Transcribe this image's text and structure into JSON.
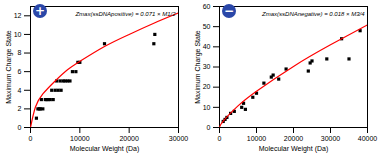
{
  "chart_data": [
    {
      "type": "scatter",
      "badge": "+",
      "annotation": "Zmax(ssDNApositive) = 0.071 × M1/2",
      "x_label": "Molecular Weight (Da)",
      "y_label": "Maximum Charge State",
      "xlim": [
        0,
        30000
      ],
      "xticks": [
        0,
        10000,
        20000,
        30000
      ],
      "ylim": [
        0,
        13
      ],
      "yticks": [
        0,
        2,
        4,
        6,
        8,
        10,
        12
      ],
      "series": [
        {
          "type": "scatter",
          "color": "#000000",
          "marker": "square",
          "x": [
            1200,
            1500,
            1800,
            2000,
            2200,
            2500,
            3000,
            3300,
            3600,
            4000,
            4300,
            4600,
            5000,
            5300,
            5600,
            6000,
            6200,
            6600,
            7000,
            7500,
            8000,
            8500,
            9200,
            9600,
            10000,
            15000,
            25000,
            25200
          ],
          "values": [
            1,
            2,
            2,
            2,
            3,
            2,
            3,
            3,
            3,
            3,
            4,
            3,
            4,
            5,
            4,
            5,
            4,
            5,
            5,
            5,
            5,
            6,
            6,
            7,
            7,
            9,
            9,
            10
          ]
        },
        {
          "type": "line",
          "color": "#ff0000",
          "x": [
            0,
            1000,
            2500,
            5000,
            7500,
            10000,
            15000,
            20000,
            25000,
            30000
          ],
          "values": [
            0,
            2.2,
            3.6,
            5,
            6.2,
            7.1,
            8.7,
            10,
            11.2,
            12.3
          ]
        }
      ]
    },
    {
      "type": "scatter",
      "badge": "−",
      "annotation": "Zmax(ssDNAnegative) = 0.018 × M3/4",
      "x_label": "Molecular Weight (Da)",
      "y_label": "Maximum Charge State",
      "xlim": [
        0,
        40000
      ],
      "xticks": [
        0,
        10000,
        20000,
        30000,
        40000
      ],
      "ylim": [
        0,
        60
      ],
      "yticks": [
        0,
        10,
        20,
        30,
        40,
        50,
        60
      ],
      "series": [
        {
          "type": "scatter",
          "color": "#000000",
          "marker": "square",
          "x": [
            1000,
            1500,
            2000,
            3000,
            4000,
            6000,
            6500,
            7000,
            9000,
            10000,
            12000,
            14000,
            14500,
            16000,
            18000,
            24000,
            24500,
            25000,
            29000,
            33000,
            35000,
            38000
          ],
          "values": [
            3,
            4,
            5,
            7,
            8,
            10,
            12,
            9,
            15,
            17,
            22,
            25,
            26,
            24,
            29,
            28,
            32,
            33,
            34,
            44,
            34,
            48
          ]
        },
        {
          "type": "line",
          "color": "#ff0000",
          "x": [
            0,
            1000,
            5000,
            10000,
            20000,
            30000,
            40000
          ],
          "values": [
            0,
            3.2,
            10.7,
            18,
            30.3,
            41,
            50.9
          ]
        }
      ]
    }
  ]
}
